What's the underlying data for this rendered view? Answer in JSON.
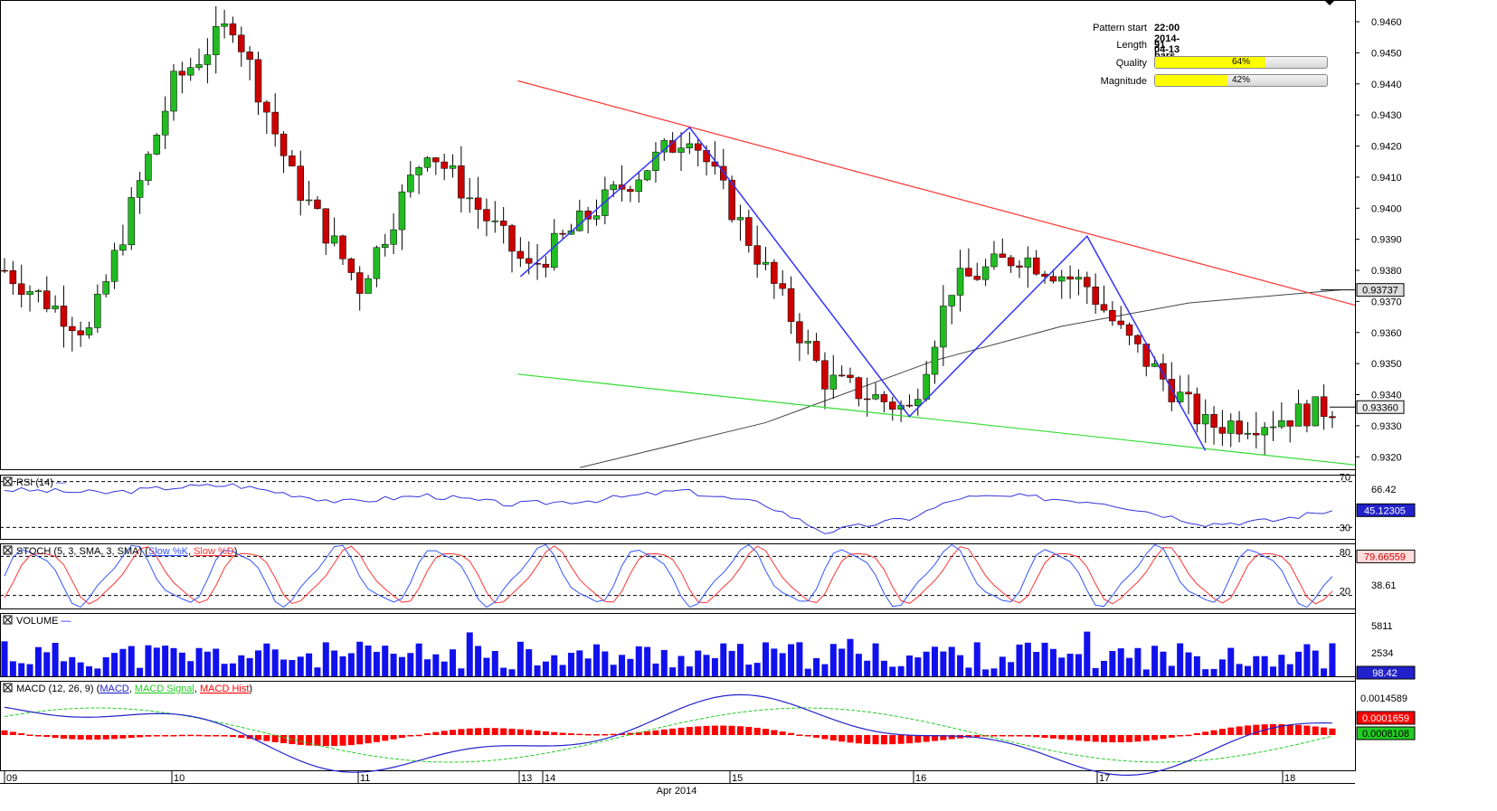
{
  "pattern_info": {
    "start_label": "Pattern start",
    "start_value": "22:00 2014-04-13",
    "length_label": "Length",
    "length_value": "91 bars",
    "quality_label": "Quality",
    "quality_value": "64%",
    "quality_fraction": 0.64,
    "magnitude_label": "Magnitude",
    "magnitude_value": "42%",
    "magnitude_fraction": 0.42
  },
  "colors": {
    "bull": "#22bb22",
    "bear": "#cc0000",
    "resistance": "#ff3333",
    "support": "#33dd33",
    "pattern": "#3333ff",
    "ma": "#444444",
    "rsi": "#3333dd",
    "stoch_k": "#3355ff",
    "stoch_d": "#ff3333",
    "volume": "#1111ee",
    "macd": "#2222cc",
    "macd_signal": "#22cc22",
    "macd_hist": "#ff0000"
  },
  "chart_data": [
    {
      "type": "candlestick",
      "panel": "price",
      "ylim": [
        0.9316,
        0.9467
      ],
      "y_ticks": [
        "0.9460",
        "0.9450",
        "0.9440",
        "0.9430",
        "0.9420",
        "0.9410",
        "0.9400",
        "0.9390",
        "0.9380",
        "0.9370",
        "0.9360",
        "0.9350",
        "0.9340",
        "0.9330",
        "0.9320"
      ],
      "price_labels": [
        {
          "value": 0.93737,
          "text": "0.93737"
        },
        {
          "value": 0.9336,
          "text": "0.93360"
        }
      ],
      "x_labels": [
        "09",
        "10",
        "11",
        "13",
        "14",
        "Apr 2014",
        "15",
        "16",
        "17",
        "18"
      ],
      "bar_count": 158,
      "key_points": [
        {
          "bar": 0,
          "price": 0.938
        },
        {
          "bar": 10,
          "price": 0.936
        },
        {
          "bar": 20,
          "price": 0.944
        },
        {
          "bar": 27,
          "price": 0.946
        },
        {
          "bar": 34,
          "price": 0.941
        },
        {
          "bar": 42,
          "price": 0.9375
        },
        {
          "bar": 50,
          "price": 0.942
        },
        {
          "bar": 56,
          "price": 0.94
        },
        {
          "bar": 62,
          "price": 0.938
        },
        {
          "bar": 70,
          "price": 0.94
        },
        {
          "bar": 81,
          "price": 0.9425
        },
        {
          "bar": 88,
          "price": 0.939
        },
        {
          "bar": 97,
          "price": 0.9345
        },
        {
          "bar": 107,
          "price": 0.9335
        },
        {
          "bar": 112,
          "price": 0.9375
        },
        {
          "bar": 120,
          "price": 0.9385
        },
        {
          "bar": 128,
          "price": 0.9375
        },
        {
          "bar": 132,
          "price": 0.936
        },
        {
          "bar": 142,
          "price": 0.933
        },
        {
          "bar": 150,
          "price": 0.9332
        },
        {
          "bar": 157,
          "price": 0.9336
        }
      ],
      "resistance_line": [
        {
          "bar": 61,
          "price": 0.9441
        },
        {
          "bar": 158,
          "price": 0.93688
        }
      ],
      "support_line": [
        {
          "bar": 61,
          "price": 0.93466
        },
        {
          "bar": 158,
          "price": 0.93174
        }
      ],
      "pattern_zigzag": [
        {
          "bar": 61,
          "price": 0.9378
        },
        {
          "bar": 81,
          "price": 0.9426
        },
        {
          "bar": 107,
          "price": 0.9333
        },
        {
          "bar": 128,
          "price": 0.9391
        },
        {
          "bar": 142,
          "price": 0.9322
        }
      ],
      "moving_average": [
        {
          "bar": 68,
          "price": 0.93165
        },
        {
          "bar": 90,
          "price": 0.9331
        },
        {
          "bar": 110,
          "price": 0.9351
        },
        {
          "bar": 125,
          "price": 0.9362
        },
        {
          "bar": 140,
          "price": 0.93695
        },
        {
          "bar": 158,
          "price": 0.93737
        }
      ]
    },
    {
      "type": "line",
      "panel": "rsi",
      "title": "RSI (14)",
      "ylim": [
        20,
        76
      ],
      "levels": [
        70,
        30
      ],
      "y_ticks": [
        "70",
        "66.42",
        "30"
      ],
      "last_value": "45.12305",
      "key_points": [
        [
          0,
          63
        ],
        [
          12,
          60
        ],
        [
          20,
          65
        ],
        [
          27,
          67
        ],
        [
          40,
          52
        ],
        [
          50,
          58
        ],
        [
          60,
          50
        ],
        [
          70,
          54
        ],
        [
          80,
          62
        ],
        [
          90,
          50
        ],
        [
          97,
          26
        ],
        [
          107,
          38
        ],
        [
          113,
          56
        ],
        [
          120,
          57
        ],
        [
          130,
          52
        ],
        [
          142,
          33
        ],
        [
          150,
          36
        ],
        [
          157,
          45
        ]
      ]
    },
    {
      "type": "line",
      "panel": "stoch",
      "title": "STOCH (5, 3, SMA, 3, SMA)",
      "legend": [
        "Slow %K",
        "Slow %D"
      ],
      "ylim": [
        0,
        100
      ],
      "levels": [
        80,
        20
      ],
      "y_ticks": [
        "80",
        "38.61",
        "20"
      ],
      "last_value": "79.66559"
    },
    {
      "type": "bar",
      "panel": "volume",
      "title": "VOLUME",
      "ylim": [
        0,
        7300
      ],
      "y_ticks": [
        "5811",
        "2534"
      ],
      "last_value": "98.42"
    },
    {
      "type": "line",
      "panel": "macd",
      "title": "MACD (12, 26, 9)",
      "legend": [
        "MACD",
        "MACD Signal",
        "MACD Hist"
      ],
      "ylim": [
        -0.0011,
        0.0022
      ],
      "y_ticks": [
        "0.0014589"
      ],
      "last_values": [
        "0.0001659",
        "0.0008108"
      ]
    }
  ]
}
